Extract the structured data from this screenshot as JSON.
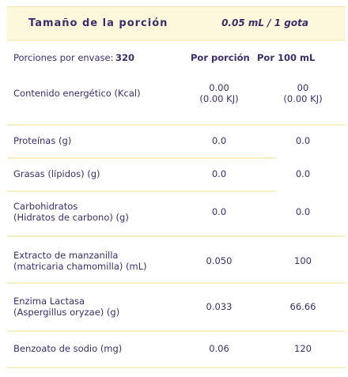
{
  "header": {
    "title": "Tamaño de la porción",
    "serving": "0.05 mL / 1 gota"
  },
  "servings": {
    "label": "Porciones por envase:",
    "value": "320"
  },
  "columns": [
    "Por porción",
    "Por 100 mL"
  ],
  "rows": [
    {
      "label": [
        "Contenido energético (Kcal)"
      ],
      "per_portion": [
        "0.00",
        "(0.00 KJ)"
      ],
      "per_100": [
        "00",
        "(0.00 KJ)"
      ]
    },
    {
      "label": [
        "Proteínas (g)"
      ],
      "per_portion": [
        "0.0"
      ],
      "per_100": [
        "0.0"
      ]
    },
    {
      "label": [
        "Grasas (lípidos) (g)"
      ],
      "per_portion": [
        "0.0"
      ],
      "per_100": [
        "0.0"
      ]
    },
    {
      "label": [
        "Carbohidratos",
        "(Hidratos de carbono) (g)"
      ],
      "per_portion": [
        "0.0"
      ],
      "per_100": [
        "0.0"
      ]
    },
    {
      "label": [
        "Extracto de manzanilla",
        "(matricaria chamomilla) (mL)"
      ],
      "per_portion": [
        "0.050"
      ],
      "per_100": [
        "100"
      ]
    },
    {
      "label": [
        "Enzima Lactasa",
        "(Aspergillus oryzae) (g)"
      ],
      "per_portion": [
        "0.033"
      ],
      "per_100": [
        "66.66"
      ]
    },
    {
      "label": [
        "Benzoato de sodio (mg)"
      ],
      "per_portion": [
        "0.06"
      ],
      "per_100": [
        "120"
      ]
    }
  ]
}
